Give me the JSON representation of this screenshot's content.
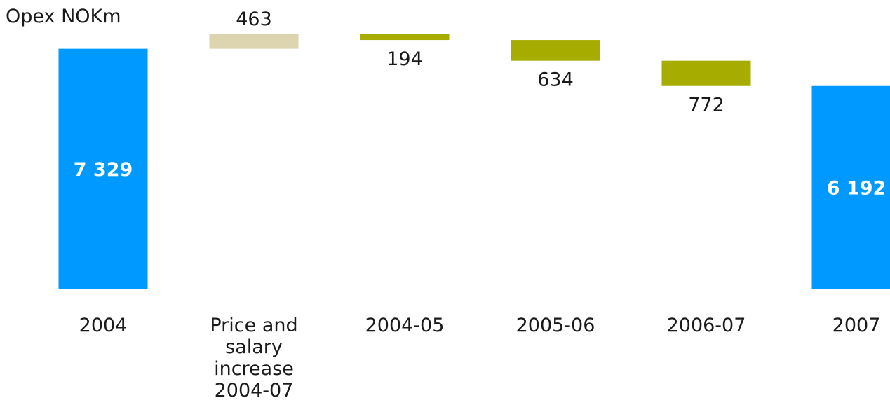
{
  "chart_data": {
    "type": "bar",
    "subtype": "waterfall",
    "title": "Opex NOKm",
    "categories": [
      [
        "2004"
      ],
      [
        "Price and",
        "salary",
        "increase",
        "2004-07"
      ],
      [
        "2004-05"
      ],
      [
        "2005-06"
      ],
      [
        "2006-07"
      ],
      [
        "2007"
      ]
    ],
    "steps": [
      {
        "kind": "total",
        "value": 7329,
        "label": "7 329",
        "label_position": "inside"
      },
      {
        "kind": "increase",
        "value": 463,
        "label": "463",
        "label_position": "above"
      },
      {
        "kind": "decrease",
        "value": 194,
        "label": "194",
        "label_position": "below"
      },
      {
        "kind": "decrease",
        "value": 634,
        "label": "634",
        "label_position": "below"
      },
      {
        "kind": "decrease",
        "value": 772,
        "label": "772",
        "label_position": "below"
      },
      {
        "kind": "total",
        "value": 6192,
        "label": "6 192",
        "label_position": "inside"
      }
    ],
    "ylim": [
      0,
      7792
    ],
    "grid": false,
    "legend": "none",
    "xlabel": "",
    "ylabel": "",
    "colors": {
      "total": "#0099ff",
      "increase": "#ddd5b0",
      "decrease": "#a7ad00"
    }
  }
}
